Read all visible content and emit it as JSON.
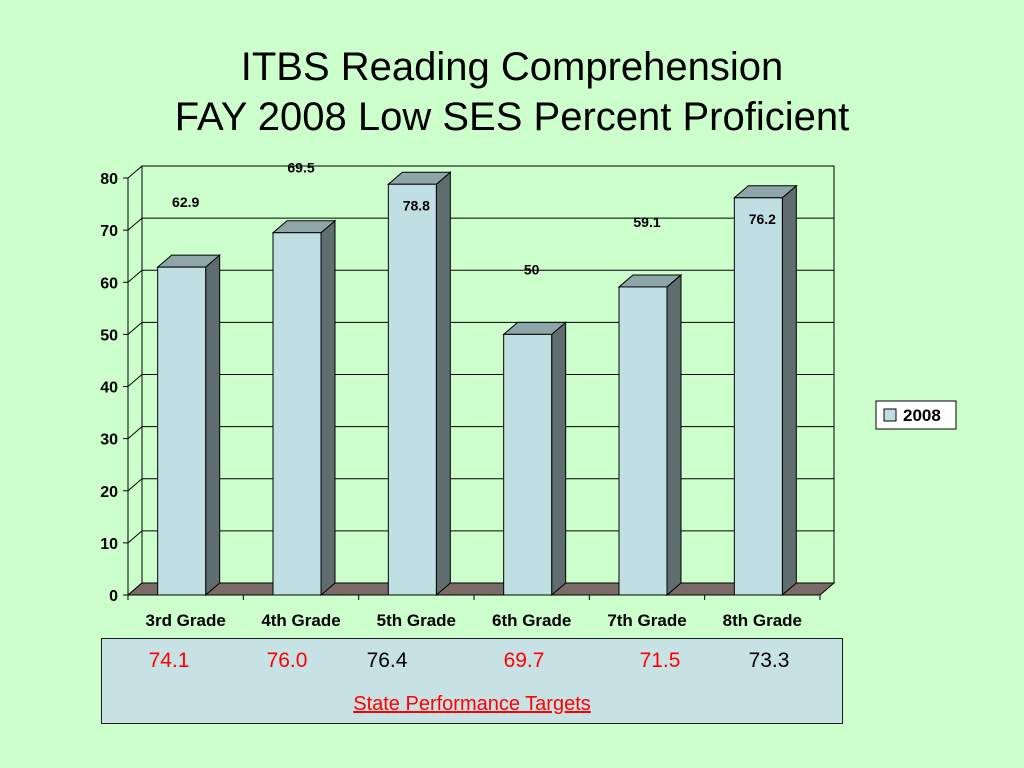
{
  "title": {
    "line1": "ITBS Reading Comprehension",
    "line2": "FAY 2008 Low SES Percent Proficient"
  },
  "chart_data": {
    "type": "bar",
    "categories": [
      "3rd Grade",
      "4th Grade",
      "5th Grade",
      "6th Grade",
      "7th Grade",
      "8th Grade"
    ],
    "series": [
      {
        "name": "2008",
        "values": [
          62.9,
          69.5,
          78.8,
          50,
          59.1,
          76.2
        ]
      }
    ],
    "data_labels": [
      "62.9",
      "69.5",
      "78.8",
      "50",
      "59.1",
      "76.2"
    ],
    "ylim": [
      0,
      80
    ],
    "yticks": [
      0,
      10,
      20,
      30,
      40,
      50,
      60,
      70,
      80
    ],
    "grid": true,
    "legend_position": "right",
    "three_d": true,
    "colors": {
      "bar_front": "#c0dfe3",
      "bar_top": "#8fa6a8",
      "bar_side": "#5f6d6e",
      "floor": "#7a6a68",
      "background": "#ccffcc"
    }
  },
  "targets": {
    "values": [
      {
        "text": "74.1",
        "color": "#ff0000"
      },
      {
        "text": "76.0",
        "color": "#ff0000"
      },
      {
        "text": "76.4",
        "color": "#000000"
      },
      {
        "text": "69.7",
        "color": "#ff0000"
      },
      {
        "text": "71.5",
        "color": "#ff0000"
      },
      {
        "text": "73.3",
        "color": "#000000"
      }
    ],
    "caption": "State Performance Targets"
  }
}
